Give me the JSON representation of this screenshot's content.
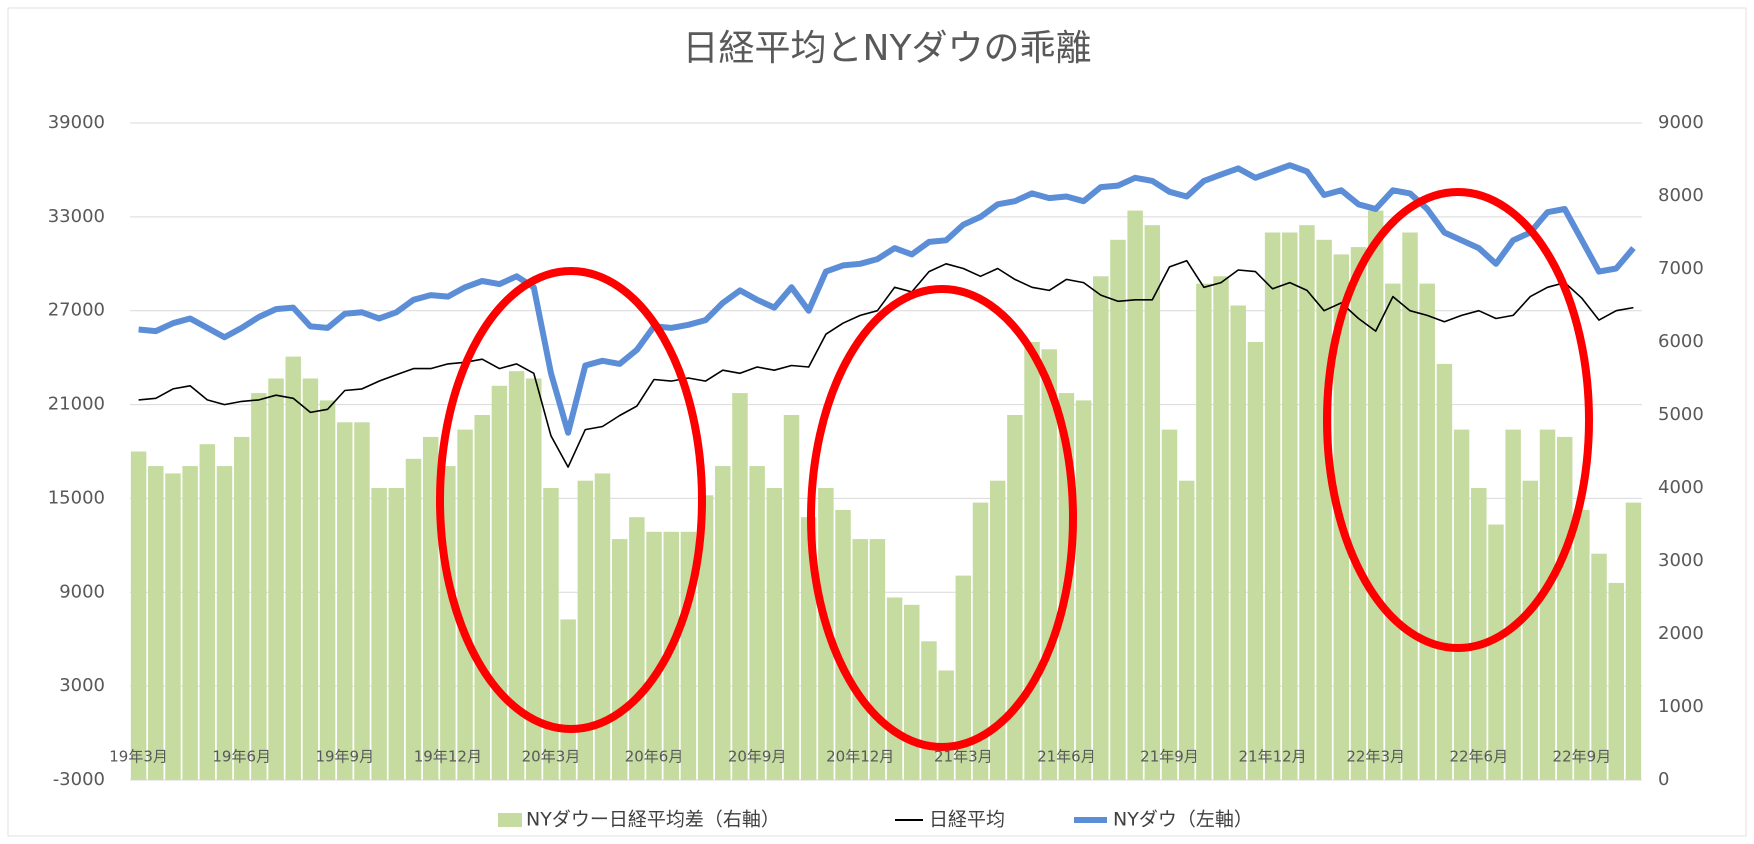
{
  "chart_data": {
    "type": "combo",
    "title": "日経平均とNYダウの乖離",
    "categories": [
      "19年3月",
      null,
      null,
      null,
      null,
      null,
      "19年6月",
      null,
      null,
      null,
      null,
      null,
      "19年9月",
      null,
      null,
      null,
      null,
      null,
      "19年12月",
      null,
      null,
      null,
      null,
      null,
      "20年3月",
      null,
      null,
      null,
      null,
      null,
      "20年6月",
      null,
      null,
      null,
      null,
      null,
      "20年9月",
      null,
      null,
      null,
      null,
      null,
      "20年12月",
      null,
      null,
      null,
      null,
      null,
      "21年3月",
      null,
      null,
      null,
      null,
      null,
      "21年6月",
      null,
      null,
      null,
      null,
      null,
      "21年9月",
      null,
      null,
      null,
      null,
      null,
      "21年12月",
      null,
      null,
      null,
      null,
      null,
      "22年3月",
      null,
      null,
      null,
      null,
      null,
      "22年6月",
      null,
      null,
      null,
      null,
      null,
      "22年9月",
      null,
      null,
      null
    ],
    "series": [
      {
        "name": "NYダウー日経平均差（右軸）",
        "kind": "bar",
        "axis": "y2",
        "color": "#c5dba0",
        "values": [
          4500,
          4300,
          4200,
          4300,
          4600,
          4300,
          4700,
          5300,
          5500,
          5800,
          5500,
          5200,
          4900,
          4900,
          4000,
          4000,
          4400,
          4700,
          4300,
          4800,
          5000,
          5400,
          5600,
          5500,
          4000,
          2200,
          4100,
          4200,
          3300,
          3600,
          3400,
          3400,
          3400,
          3900,
          4300,
          5300,
          4300,
          4000,
          5000,
          3600,
          4000,
          3700,
          3300,
          3300,
          2500,
          2400,
          1900,
          1500,
          2800,
          3800,
          4100,
          5000,
          6000,
          5900,
          5300,
          5200,
          6900,
          7400,
          7800,
          7600,
          4800,
          4100,
          6800,
          6900,
          6500,
          6000,
          7500,
          7500,
          7600,
          7400,
          7200,
          7300,
          7800,
          6800,
          7500,
          6800,
          5700,
          4800,
          4000,
          3500,
          4800,
          4100,
          4800,
          4700,
          3700,
          3100,
          2700,
          3800
        ]
      },
      {
        "name": "日経平均",
        "kind": "line",
        "axis": "y",
        "color": "#000000",
        "values": [
          21300,
          21400,
          22000,
          22200,
          21300,
          21000,
          21200,
          21300,
          21600,
          21400,
          20500,
          20700,
          21900,
          22000,
          22500,
          22900,
          23300,
          23300,
          23600,
          23700,
          23900,
          23300,
          23600,
          23000,
          19000,
          17000,
          19400,
          19600,
          20300,
          20900,
          22600,
          22500,
          22700,
          22500,
          23200,
          23000,
          23400,
          23200,
          23500,
          23400,
          25500,
          26200,
          26700,
          27000,
          28500,
          28200,
          29500,
          30000,
          29700,
          29200,
          29700,
          29000,
          28500,
          28300,
          29000,
          28800,
          28000,
          27600,
          27700,
          27700,
          29800,
          30200,
          28500,
          28800,
          29600,
          29500,
          28400,
          28800,
          28300,
          27000,
          27500,
          26500,
          25700,
          27900,
          27000,
          26700,
          26300,
          26700,
          27000,
          26500,
          26700,
          27900,
          28500,
          28800,
          27800,
          26400,
          27000,
          27200
        ]
      },
      {
        "name": "NYダウ（左軸）",
        "kind": "line",
        "axis": "y",
        "color": "#5b8ed6",
        "values": [
          25800,
          25700,
          26200,
          26500,
          25900,
          25300,
          25900,
          26600,
          27100,
          27200,
          26000,
          25900,
          26800,
          26900,
          26500,
          26900,
          27700,
          28000,
          27900,
          28500,
          28900,
          28700,
          29200,
          28500,
          23000,
          19200,
          23500,
          23800,
          23600,
          24500,
          26000,
          25900,
          26100,
          26400,
          27500,
          28300,
          27700,
          27200,
          28500,
          27000,
          29500,
          29900,
          30000,
          30300,
          31000,
          30600,
          31400,
          31500,
          32500,
          33000,
          33800,
          34000,
          34500,
          34200,
          34300,
          34000,
          34900,
          35000,
          35500,
          35300,
          34600,
          34300,
          35300,
          35700,
          36100,
          35500,
          35900,
          36300,
          35900,
          34400,
          34700,
          33800,
          33500,
          34700,
          34500,
          33500,
          32000,
          31500,
          31000,
          30000,
          31500,
          32000,
          33300,
          33500,
          31500,
          29500,
          29700,
          31000
        ]
      }
    ],
    "ylim": [
      -3000,
      39000
    ],
    "yticks": [
      -3000,
      3000,
      9000,
      15000,
      21000,
      27000,
      33000,
      39000
    ],
    "y2lim": [
      0,
      9000
    ],
    "y2ticks": [
      0,
      1000,
      2000,
      3000,
      4000,
      5000,
      6000,
      7000,
      8000,
      9000
    ],
    "grid": true,
    "legend": "bottom"
  }
}
